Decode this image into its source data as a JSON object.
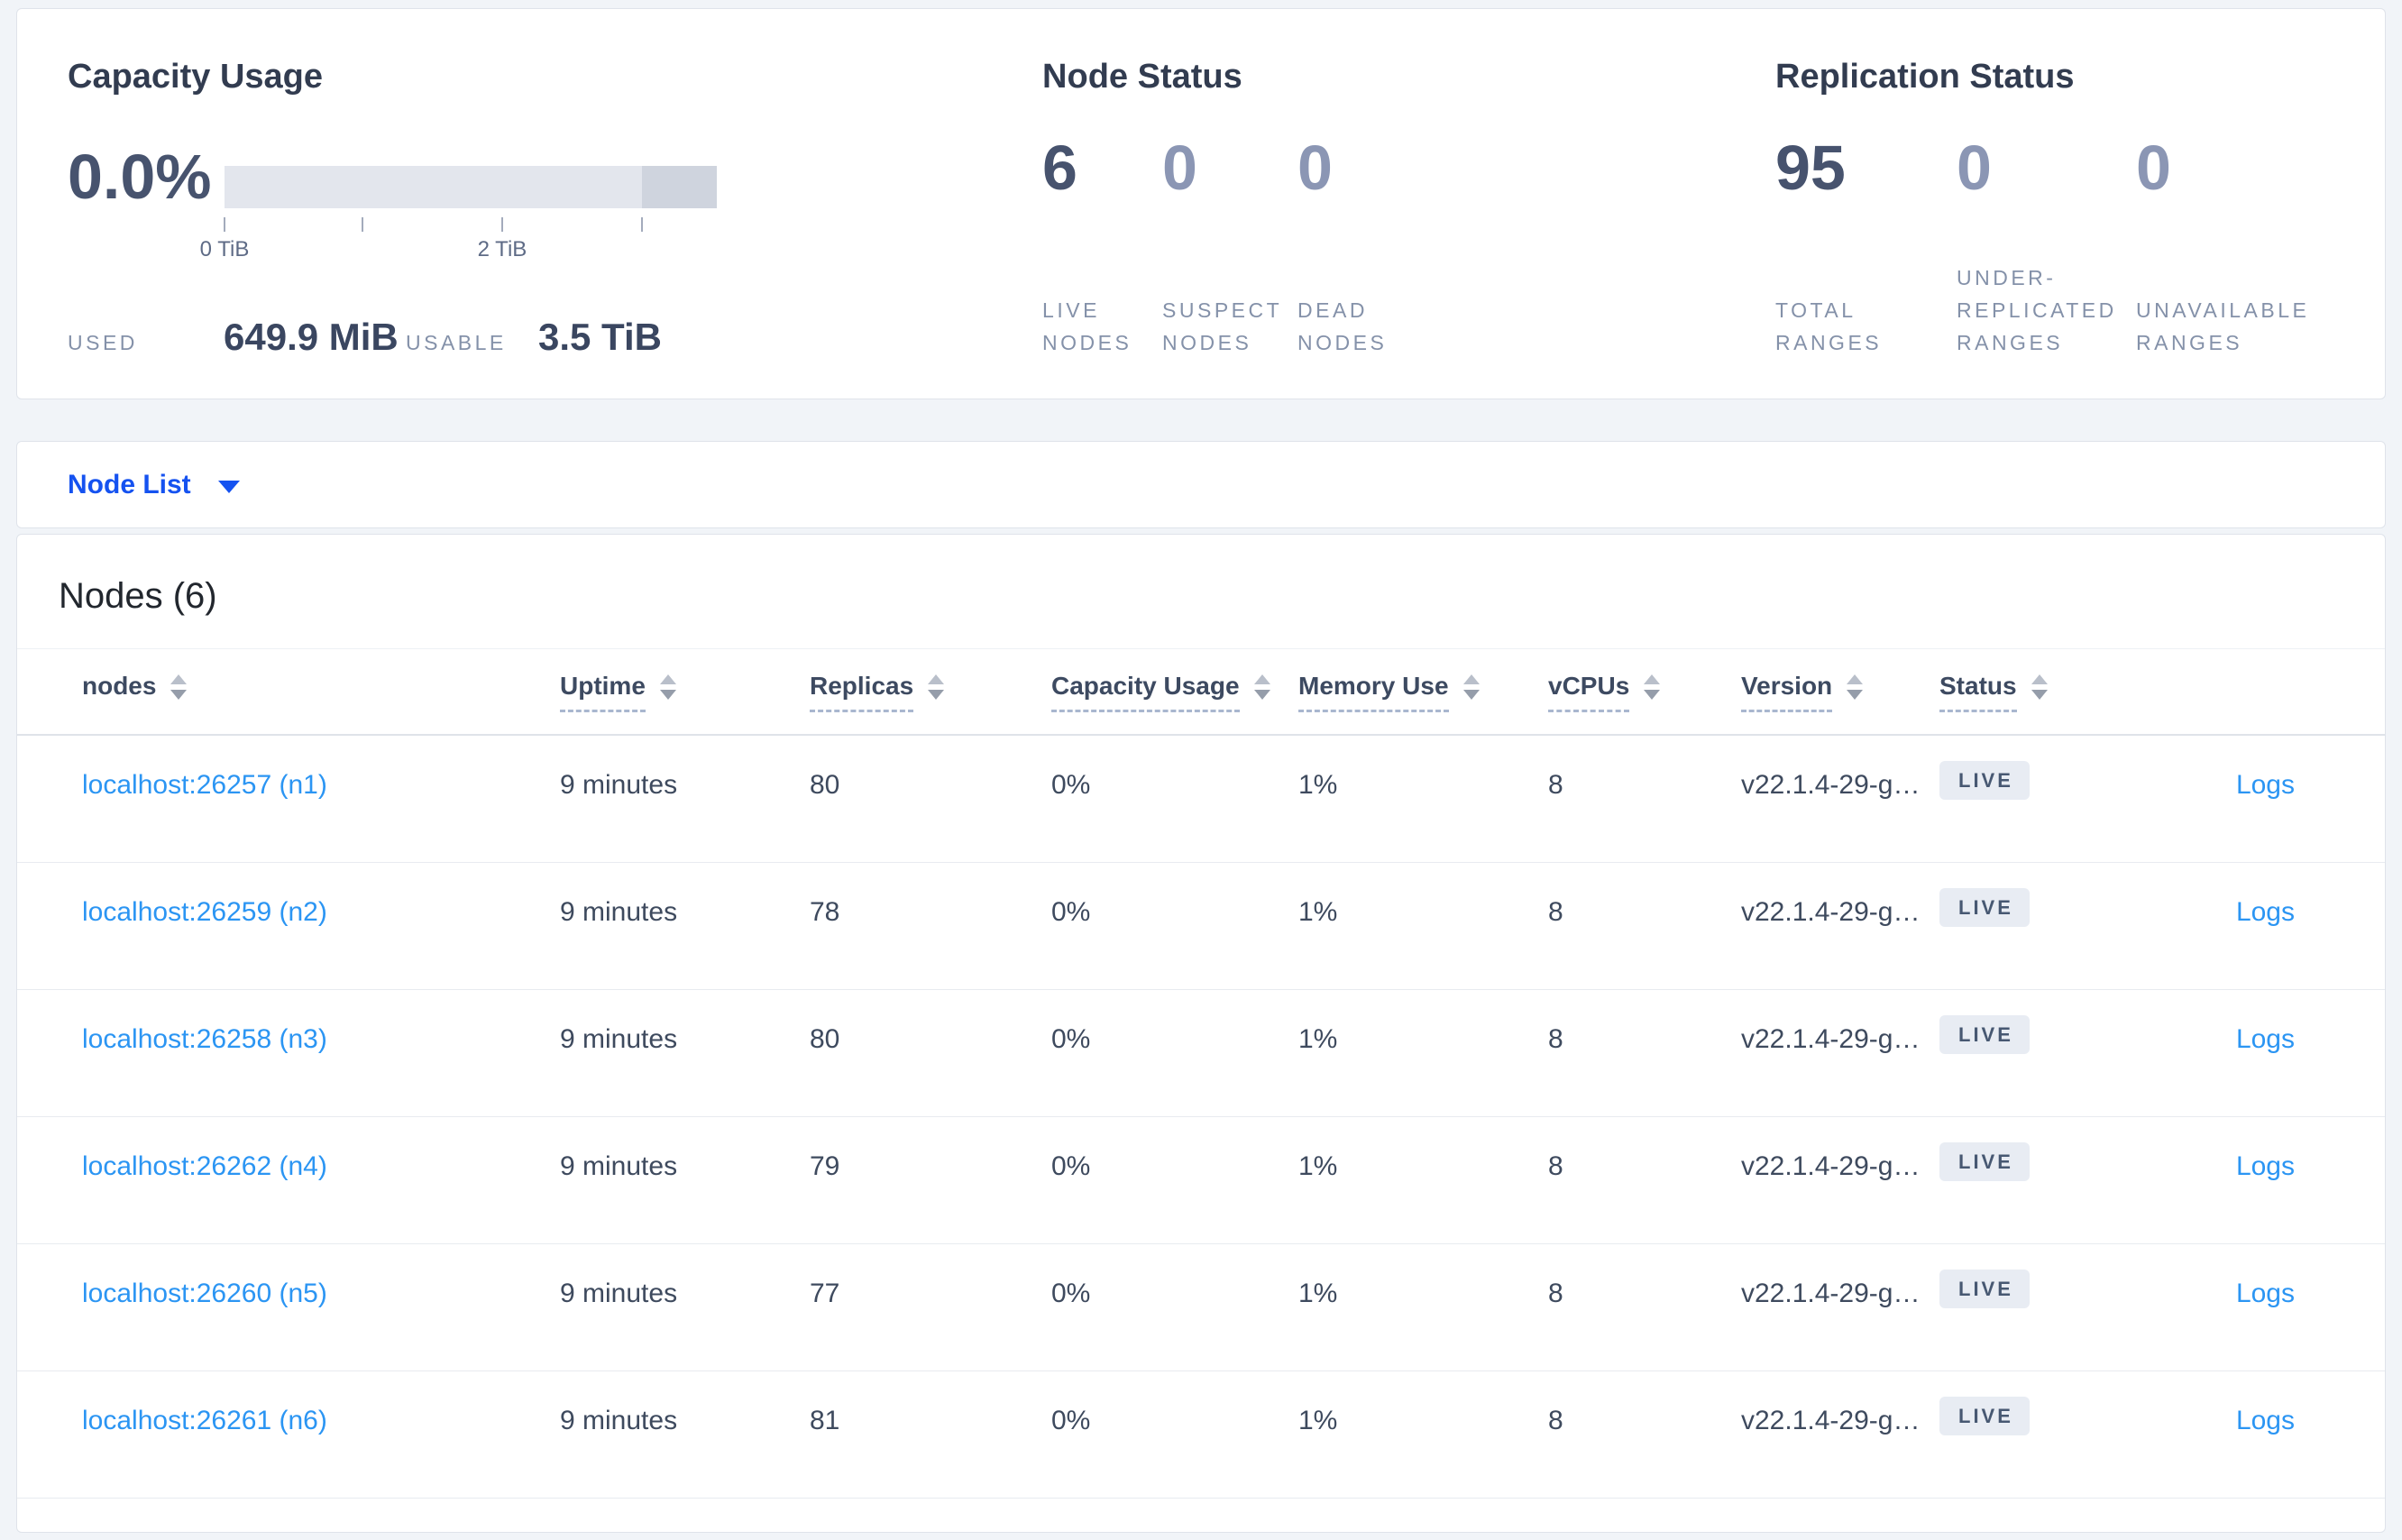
{
  "colors": {
    "accent_blue": "#1552f0",
    "link_blue": "#2b95f3",
    "title_slate": "#323c50",
    "number_slate": "#47536e",
    "number_dim": "#8b96b4",
    "badge_bg": "#e8ecf3",
    "bar_light": "#e3e6ed",
    "bar_dark": "#cfd4de"
  },
  "capacity": {
    "title": "Capacity Usage",
    "percent": "0.0%",
    "axis_labels": [
      "0 TiB",
      "",
      "2 TiB",
      ""
    ],
    "used_label": "USED",
    "used_value": "649.9 MiB",
    "usable_label": "USABLE",
    "usable_value": "3.5 TiB"
  },
  "node_status": {
    "title": "Node Status",
    "metrics": [
      {
        "value": "6",
        "label": "LIVE NODES"
      },
      {
        "value": "0",
        "label": "SUSPECT NODES"
      },
      {
        "value": "0",
        "label": "DEAD NODES"
      }
    ]
  },
  "replication_status": {
    "title": "Replication Status",
    "metrics": [
      {
        "value": "95",
        "label": "TOTAL RANGES"
      },
      {
        "value": "0",
        "label": "UNDER-REPLICATED RANGES"
      },
      {
        "value": "0",
        "label": "UNAVAILABLE RANGES"
      }
    ]
  },
  "node_list": {
    "selector_label": "Node List"
  },
  "table": {
    "heading": "Nodes (6)",
    "columns": [
      {
        "label": "nodes",
        "dashed": false
      },
      {
        "label": "Uptime",
        "dashed": true
      },
      {
        "label": "Replicas",
        "dashed": true
      },
      {
        "label": "Capacity Usage",
        "dashed": true
      },
      {
        "label": "Memory Use",
        "dashed": true
      },
      {
        "label": "vCPUs",
        "dashed": true
      },
      {
        "label": "Version",
        "dashed": true
      },
      {
        "label": "Status",
        "dashed": true
      }
    ],
    "rows": [
      {
        "address": "localhost:26257 (n1)",
        "uptime": "9 minutes",
        "replicas": "80",
        "capacity_usage": "0%",
        "memory_use": "1%",
        "vcpus": "8",
        "version": "v22.1.4-29-g…",
        "status": "LIVE",
        "logs": "Logs"
      },
      {
        "address": "localhost:26259 (n2)",
        "uptime": "9 minutes",
        "replicas": "78",
        "capacity_usage": "0%",
        "memory_use": "1%",
        "vcpus": "8",
        "version": "v22.1.4-29-g…",
        "status": "LIVE",
        "logs": "Logs"
      },
      {
        "address": "localhost:26258 (n3)",
        "uptime": "9 minutes",
        "replicas": "80",
        "capacity_usage": "0%",
        "memory_use": "1%",
        "vcpus": "8",
        "version": "v22.1.4-29-g…",
        "status": "LIVE",
        "logs": "Logs"
      },
      {
        "address": "localhost:26262 (n4)",
        "uptime": "9 minutes",
        "replicas": "79",
        "capacity_usage": "0%",
        "memory_use": "1%",
        "vcpus": "8",
        "version": "v22.1.4-29-g…",
        "status": "LIVE",
        "logs": "Logs"
      },
      {
        "address": "localhost:26260 (n5)",
        "uptime": "9 minutes",
        "replicas": "77",
        "capacity_usage": "0%",
        "memory_use": "1%",
        "vcpus": "8",
        "version": "v22.1.4-29-g…",
        "status": "LIVE",
        "logs": "Logs"
      },
      {
        "address": "localhost:26261 (n6)",
        "uptime": "9 minutes",
        "replicas": "81",
        "capacity_usage": "0%",
        "memory_use": "1%",
        "vcpus": "8",
        "version": "v22.1.4-29-g…",
        "status": "LIVE",
        "logs": "Logs"
      }
    ]
  }
}
